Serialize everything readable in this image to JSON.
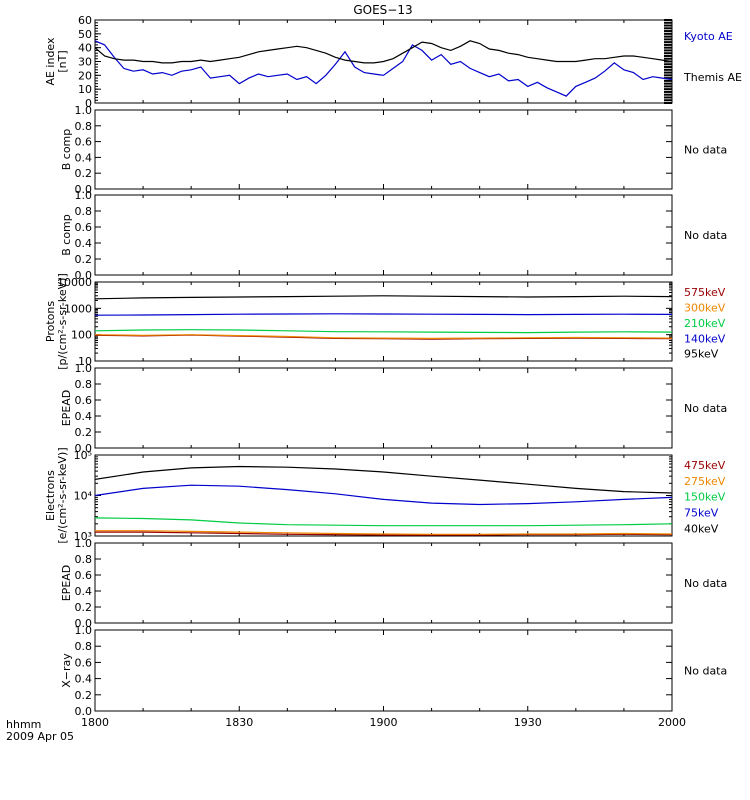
{
  "title": "GOES−13",
  "footer": {
    "hhmm_label": "hhmm",
    "date_label": "2009 Apr 05"
  },
  "x_axis": {
    "ticks": [
      "1800",
      "1830",
      "1900",
      "1930",
      "2000"
    ],
    "tick_minutes": [
      0,
      30,
      60,
      90,
      120
    ],
    "range_minutes": [
      0,
      120
    ]
  },
  "chart_data": [
    {
      "type": "line",
      "panel": "ae",
      "ylabel_lines": [
        "AE index",
        "[nT]"
      ],
      "ylim": [
        0,
        60
      ],
      "yticks": [
        "0",
        "10",
        "20",
        "30",
        "40",
        "50",
        "60"
      ],
      "ytick_values": [
        0,
        10,
        20,
        30,
        40,
        50,
        60
      ],
      "grid": false,
      "legend_placement": "right",
      "series": [
        {
          "name": "Kyoto AE",
          "color": "#0000cc",
          "x": [
            0,
            2,
            4,
            6,
            8,
            10,
            12,
            14,
            16,
            18,
            20,
            22,
            24,
            26,
            28,
            30,
            32,
            34,
            36,
            38,
            40,
            42,
            44,
            46,
            48,
            50,
            52,
            54,
            56,
            58,
            60,
            62,
            64,
            66,
            68,
            70,
            72,
            74,
            76,
            78,
            80,
            82,
            84,
            86,
            88,
            90,
            92,
            94,
            96,
            98,
            100,
            102,
            104,
            106,
            108,
            110,
            112,
            114,
            116,
            118,
            120
          ],
          "values": [
            45,
            42,
            33,
            25,
            23,
            24,
            21,
            22,
            20,
            23,
            24,
            26,
            18,
            19,
            20,
            14,
            18,
            21,
            19,
            20,
            21,
            17,
            19,
            14,
            20,
            28,
            37,
            26,
            22,
            21,
            20,
            25,
            30,
            42,
            38,
            31,
            35,
            28,
            30,
            25,
            22,
            19,
            21,
            16,
            17,
            12,
            15,
            11,
            8,
            5,
            12,
            15,
            18,
            23,
            29,
            24,
            22,
            17,
            19,
            18,
            17
          ]
        },
        {
          "name": "Themis AE",
          "color": "#000000",
          "x": [
            0,
            2,
            4,
            6,
            8,
            10,
            12,
            14,
            16,
            18,
            20,
            22,
            24,
            26,
            28,
            30,
            32,
            34,
            36,
            38,
            40,
            42,
            44,
            46,
            48,
            50,
            52,
            54,
            56,
            58,
            60,
            62,
            64,
            66,
            68,
            70,
            72,
            74,
            76,
            78,
            80,
            82,
            84,
            86,
            88,
            90,
            92,
            94,
            96,
            98,
            100,
            102,
            104,
            106,
            108,
            110,
            112,
            114,
            116,
            118,
            120
          ],
          "values": [
            40,
            34,
            32,
            31,
            31,
            30,
            30,
            29,
            29,
            30,
            30,
            31,
            30,
            31,
            32,
            33,
            35,
            37,
            38,
            39,
            40,
            41,
            40,
            38,
            36,
            33,
            31,
            30,
            29,
            29,
            30,
            32,
            36,
            40,
            44,
            43,
            40,
            38,
            41,
            45,
            43,
            39,
            38,
            36,
            35,
            33,
            32,
            31,
            30,
            30,
            30,
            31,
            32,
            32,
            33,
            34,
            34,
            33,
            32,
            31,
            30
          ]
        }
      ]
    },
    {
      "type": "line",
      "panel": "b1",
      "ylabel_lines": [
        "B comp"
      ],
      "ylim": [
        0,
        1
      ],
      "yticks": [
        "0.0",
        "0.2",
        "0.4",
        "0.6",
        "0.8",
        "1.0"
      ],
      "ytick_values": [
        0,
        0.2,
        0.4,
        0.6,
        0.8,
        1.0
      ],
      "grid": false,
      "note": "No data",
      "series": []
    },
    {
      "type": "line",
      "panel": "b2",
      "ylabel_lines": [
        "B comp"
      ],
      "ylim": [
        0,
        1
      ],
      "yticks": [
        "0.0",
        "0.2",
        "0.4",
        "0.6",
        "0.8",
        "1.0"
      ],
      "ytick_values": [
        0,
        0.2,
        0.4,
        0.6,
        0.8,
        1.0
      ],
      "grid": false,
      "note": "No data",
      "series": []
    },
    {
      "type": "line",
      "panel": "protons",
      "ylabel_lines": [
        "Protons",
        "[p/(cm²-s-sr-keV)]"
      ],
      "yscale": "log",
      "ylim": [
        10,
        10000
      ],
      "yticks": [
        "10",
        "100",
        "1000",
        "10000"
      ],
      "ytick_values": [
        10,
        100,
        1000,
        10000
      ],
      "grid": false,
      "legend_placement": "right",
      "series": [
        {
          "name": "575keV",
          "color": "#990000",
          "x": [
            0,
            10,
            20,
            30,
            40,
            50,
            60,
            70,
            80,
            90,
            100,
            110,
            120
          ],
          "values": [
            95,
            90,
            97,
            88,
            80,
            72,
            70,
            68,
            70,
            72,
            74,
            72,
            70
          ]
        },
        {
          "name": "300keV",
          "color": "#ee8800",
          "x": [
            0,
            10,
            20,
            30,
            40,
            50,
            60,
            70,
            80,
            90,
            100,
            110,
            120
          ],
          "values": [
            100,
            95,
            100,
            92,
            85,
            76,
            74,
            72,
            74,
            76,
            78,
            76,
            74
          ]
        },
        {
          "name": "210keV",
          "color": "#00cc44",
          "x": [
            0,
            10,
            20,
            30,
            40,
            50,
            60,
            70,
            80,
            90,
            100,
            110,
            120
          ],
          "values": [
            140,
            150,
            155,
            150,
            140,
            130,
            128,
            125,
            122,
            120,
            125,
            128,
            125
          ]
        },
        {
          "name": "140keV",
          "color": "#0000cc",
          "x": [
            0,
            10,
            20,
            30,
            40,
            50,
            60,
            70,
            80,
            90,
            100,
            110,
            120
          ],
          "values": [
            550,
            560,
            580,
            600,
            610,
            620,
            610,
            600,
            590,
            580,
            590,
            600,
            590
          ]
        },
        {
          "name": "95keV",
          "color": "#000000",
          "x": [
            0,
            10,
            20,
            30,
            40,
            50,
            60,
            70,
            80,
            90,
            100,
            110,
            120
          ],
          "values": [
            2300,
            2500,
            2600,
            2700,
            2800,
            2900,
            3000,
            2900,
            2800,
            2700,
            2800,
            2900,
            2800
          ]
        }
      ]
    },
    {
      "type": "line",
      "panel": "epead1",
      "ylabel_lines": [
        "EPEAD"
      ],
      "ylim": [
        0,
        1
      ],
      "yticks": [
        "0.0",
        "0.2",
        "0.4",
        "0.6",
        "0.8",
        "1.0"
      ],
      "ytick_values": [
        0,
        0.2,
        0.4,
        0.6,
        0.8,
        1.0
      ],
      "grid": false,
      "note": "No data",
      "series": []
    },
    {
      "type": "line",
      "panel": "electrons",
      "ylabel_lines": [
        "Electrons",
        "[e/(cm²-s-sr-keV)]"
      ],
      "yscale": "log",
      "ylim": [
        1000,
        100000
      ],
      "yticks": [
        "10³",
        "10⁴",
        "10⁵"
      ],
      "ytick_values": [
        1000,
        10000,
        100000
      ],
      "grid": false,
      "legend_placement": "right",
      "series": [
        {
          "name": "475keV",
          "color": "#990000",
          "x": [
            0,
            10,
            20,
            30,
            40,
            50,
            60,
            70,
            80,
            90,
            100,
            110,
            120
          ],
          "values": [
            1250,
            1250,
            1200,
            1150,
            1100,
            1080,
            1050,
            1050,
            1050,
            1080,
            1080,
            1100,
            1080
          ]
        },
        {
          "name": "275keV",
          "color": "#ee8800",
          "x": [
            0,
            10,
            20,
            30,
            40,
            50,
            60,
            70,
            80,
            90,
            100,
            110,
            120
          ],
          "values": [
            1350,
            1350,
            1300,
            1250,
            1200,
            1150,
            1120,
            1100,
            1100,
            1120,
            1120,
            1150,
            1120
          ]
        },
        {
          "name": "150keV",
          "color": "#00cc44",
          "x": [
            0,
            10,
            20,
            30,
            40,
            50,
            60,
            70,
            80,
            90,
            100,
            110,
            120
          ],
          "values": [
            2800,
            2700,
            2500,
            2100,
            1900,
            1850,
            1800,
            1800,
            1800,
            1800,
            1850,
            1900,
            2000
          ]
        },
        {
          "name": "75keV",
          "color": "#0000cc",
          "x": [
            0,
            10,
            20,
            30,
            40,
            50,
            60,
            70,
            80,
            90,
            100,
            110,
            120
          ],
          "values": [
            10000,
            15000,
            18000,
            17000,
            14000,
            11000,
            8000,
            6500,
            6000,
            6300,
            7000,
            8000,
            9000
          ]
        },
        {
          "name": "40keV",
          "color": "#000000",
          "x": [
            0,
            10,
            20,
            30,
            40,
            50,
            60,
            70,
            80,
            90,
            100,
            110,
            120
          ],
          "values": [
            25000,
            38000,
            48000,
            52000,
            50000,
            45000,
            38000,
            30000,
            24000,
            19000,
            15000,
            12500,
            11500
          ]
        }
      ]
    },
    {
      "type": "line",
      "panel": "epead2",
      "ylabel_lines": [
        "EPEAD"
      ],
      "ylim": [
        0,
        1
      ],
      "yticks": [
        "0.0",
        "0.2",
        "0.4",
        "0.6",
        "0.8",
        "1.0"
      ],
      "ytick_values": [
        0,
        0.2,
        0.4,
        0.6,
        0.8,
        1.0
      ],
      "grid": false,
      "note": "No data",
      "series": []
    },
    {
      "type": "line",
      "panel": "xray",
      "ylabel_lines": [
        "X−ray"
      ],
      "ylim": [
        0,
        1
      ],
      "yticks": [
        "0.0",
        "0.2",
        "0.4",
        "0.6",
        "0.8",
        "1.0"
      ],
      "ytick_values": [
        0,
        0.2,
        0.4,
        0.6,
        0.8,
        1.0
      ],
      "grid": false,
      "note": "No data",
      "series": []
    }
  ]
}
